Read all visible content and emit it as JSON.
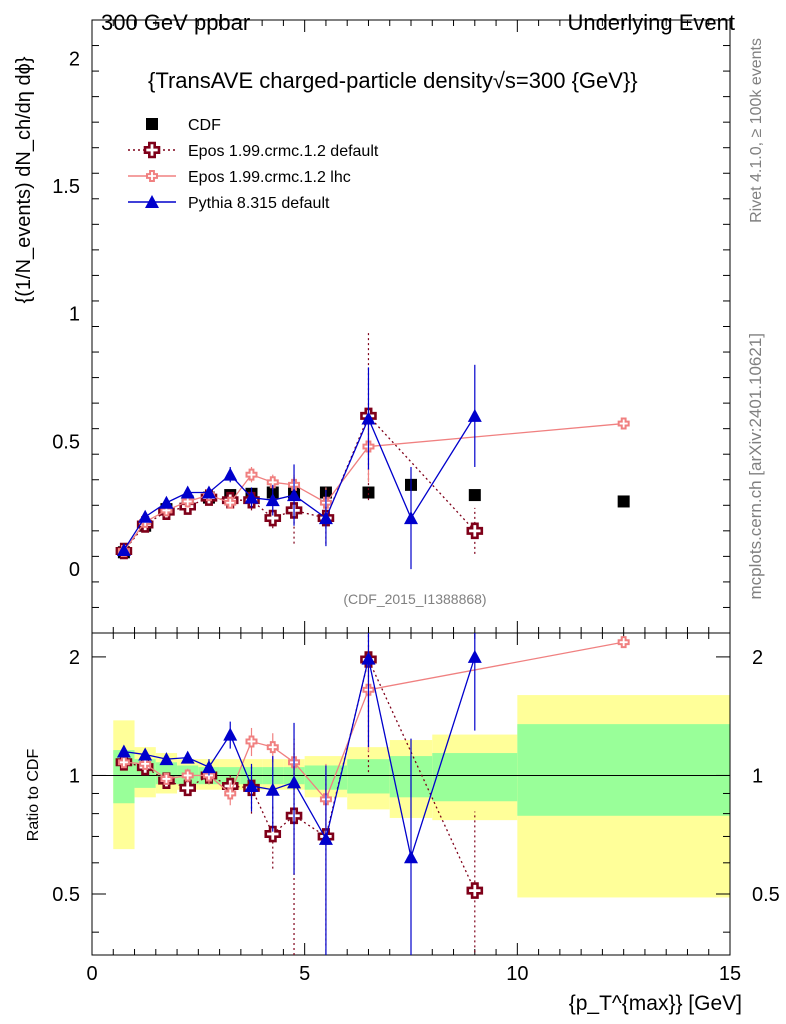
{
  "header": {
    "left": "300 GeV ppbar",
    "right": "Underlying Event"
  },
  "side": {
    "rivet": "Rivet 4.1.0, ≥ 100k events",
    "mcplots": "mcplots.cern.ch [arXiv:2401.10621]"
  },
  "watermark": "(CDF_2015_I1388868)",
  "chart_data": {
    "type": "scatter",
    "title": "{TransAVE charged-particle density√s=300 {GeV}}",
    "xlabel": "{p_T^{max}} [GeV]",
    "ylabel": "{(1/N_events) dN_ch/dη dϕ}",
    "ratio_ylabel": "Ratio to CDF",
    "xlim": [
      0,
      15
    ],
    "ylim": [
      -0.25,
      2.15
    ],
    "ratio_ylim": [
      0.35,
      2.3
    ],
    "x_ticks": [
      "0",
      "5",
      "10",
      "15"
    ],
    "y_ticks": [
      "0",
      "0.5",
      "1",
      "1.5",
      "2"
    ],
    "ratio_ticks": [
      "0.5",
      "1",
      "2"
    ],
    "legend": [
      "CDF",
      "Epos 1.99.crmc.1.2 default",
      "Epos 1.99.crmc.1.2 lhc",
      "Pythia 8.315 default"
    ],
    "bins": [
      [
        0.5,
        1.0
      ],
      [
        1.0,
        1.5
      ],
      [
        1.5,
        2.0
      ],
      [
        2.0,
        2.5
      ],
      [
        2.5,
        3.0
      ],
      [
        3.0,
        3.5
      ],
      [
        3.5,
        4.0
      ],
      [
        4.0,
        4.5
      ],
      [
        4.5,
        5.0
      ],
      [
        5.0,
        6.0
      ],
      [
        6.0,
        7.0
      ],
      [
        7.0,
        8.0
      ],
      [
        8.0,
        10.0
      ],
      [
        10.0,
        15.0
      ]
    ],
    "band_green": [
      [
        0.85,
        1.16
      ],
      [
        0.93,
        1.1
      ],
      [
        0.95,
        1.08
      ],
      [
        0.95,
        1.06
      ],
      [
        0.95,
        1.05
      ],
      [
        0.95,
        1.05
      ],
      [
        0.95,
        1.05
      ],
      [
        0.95,
        1.05
      ],
      [
        0.95,
        1.05
      ],
      [
        0.92,
        1.06
      ],
      [
        0.9,
        1.1
      ],
      [
        0.88,
        1.12
      ],
      [
        0.86,
        1.14
      ],
      [
        0.79,
        1.35
      ]
    ],
    "band_yellow": [
      [
        0.65,
        1.38
      ],
      [
        0.88,
        1.18
      ],
      [
        0.9,
        1.14
      ],
      [
        0.92,
        1.1
      ],
      [
        0.92,
        1.1
      ],
      [
        0.92,
        1.1
      ],
      [
        0.92,
        1.1
      ],
      [
        0.92,
        1.1
      ],
      [
        0.92,
        1.1
      ],
      [
        0.88,
        1.12
      ],
      [
        0.82,
        1.18
      ],
      [
        0.78,
        1.23
      ],
      [
        0.77,
        1.27
      ],
      [
        0.49,
        1.6
      ]
    ],
    "series": [
      {
        "name": "CDF",
        "color": "#000000",
        "marker": "square",
        "x": [
          0.75,
          1.25,
          1.75,
          2.25,
          2.75,
          3.25,
          3.75,
          4.25,
          4.75,
          5.5,
          6.5,
          7.5,
          9.0,
          12.5
        ],
        "y": [
          0.066,
          0.17,
          0.235,
          0.265,
          0.28,
          0.29,
          0.295,
          0.3,
          0.3,
          0.3,
          0.3,
          0.33,
          0.29,
          0.265
        ]
      },
      {
        "name": "Epos 1.99.crmc.1.2 default",
        "color": "#7f0019",
        "marker": "cross",
        "dotted": true,
        "x": [
          0.75,
          1.25,
          1.75,
          2.25,
          2.75,
          3.25,
          3.75,
          4.25,
          4.75,
          5.5,
          6.5,
          9.0
        ],
        "y": [
          0.071,
          0.175,
          0.225,
          0.245,
          0.28,
          0.27,
          0.27,
          0.2,
          0.23,
          0.2,
          0.6,
          0.15
        ],
        "err": [
          0.005,
          0.008,
          0.01,
          0.012,
          0.015,
          0.02,
          0.04,
          0.04,
          0.13,
          0.1,
          0.33,
          0.09
        ],
        "ratio": [
          1.08,
          1.05,
          0.97,
          0.93,
          1.0,
          0.94,
          0.93,
          0.71,
          0.79,
          0.7,
          1.97,
          0.51
        ],
        "ratio_err": [
          0.03,
          0.03,
          0.03,
          0.04,
          0.05,
          0.06,
          0.13,
          0.13,
          0.45,
          0.33,
          0.95,
          0.3
        ]
      },
      {
        "name": "Epos 1.99.crmc.1.2 lhc",
        "color": "#f08080",
        "marker": "cross-light",
        "x": [
          0.75,
          1.25,
          1.75,
          2.25,
          2.75,
          3.25,
          3.75,
          4.25,
          4.75,
          5.5,
          6.5,
          12.5
        ],
        "y": [
          0.071,
          0.185,
          0.23,
          0.265,
          0.29,
          0.26,
          0.37,
          0.34,
          0.33,
          0.26,
          0.48,
          0.57
        ],
        "err": [
          0.005,
          0.008,
          0.01,
          0.012,
          0.015,
          0.02,
          0.03,
          0.03,
          0.04,
          0.06,
          0.14,
          0.0
        ],
        "ratio": [
          1.08,
          1.07,
          0.98,
          1.0,
          1.0,
          0.9,
          1.22,
          1.18,
          1.08,
          0.87,
          1.65,
          2.18
        ],
        "ratio_err": [
          0.03,
          0.03,
          0.03,
          0.04,
          0.05,
          0.06,
          0.1,
          0.1,
          0.12,
          0.2,
          0.5,
          0.05
        ]
      },
      {
        "name": "Pythia 8.315 default",
        "color": "#0000cc",
        "marker": "triangle",
        "x": [
          0.75,
          1.25,
          1.75,
          2.25,
          2.75,
          3.25,
          3.75,
          4.25,
          4.75,
          5.5,
          6.5,
          7.5,
          9.0
        ],
        "y": [
          0.075,
          0.205,
          0.26,
          0.3,
          0.3,
          0.37,
          0.28,
          0.27,
          0.29,
          0.2,
          0.59,
          0.2,
          0.6
        ],
        "err": [
          0.005,
          0.008,
          0.01,
          0.012,
          0.015,
          0.03,
          0.04,
          0.06,
          0.12,
          0.11,
          0.2,
          0.2,
          0.2
        ],
        "ratio": [
          1.15,
          1.13,
          1.1,
          1.11,
          1.05,
          1.27,
          0.94,
          0.92,
          0.96,
          0.69,
          1.98,
          0.62,
          2.0
        ],
        "ratio_err": [
          0.02,
          0.03,
          0.03,
          0.03,
          0.05,
          0.1,
          0.13,
          0.2,
          0.4,
          0.37,
          0.8,
          0.62,
          0.7
        ]
      }
    ]
  }
}
